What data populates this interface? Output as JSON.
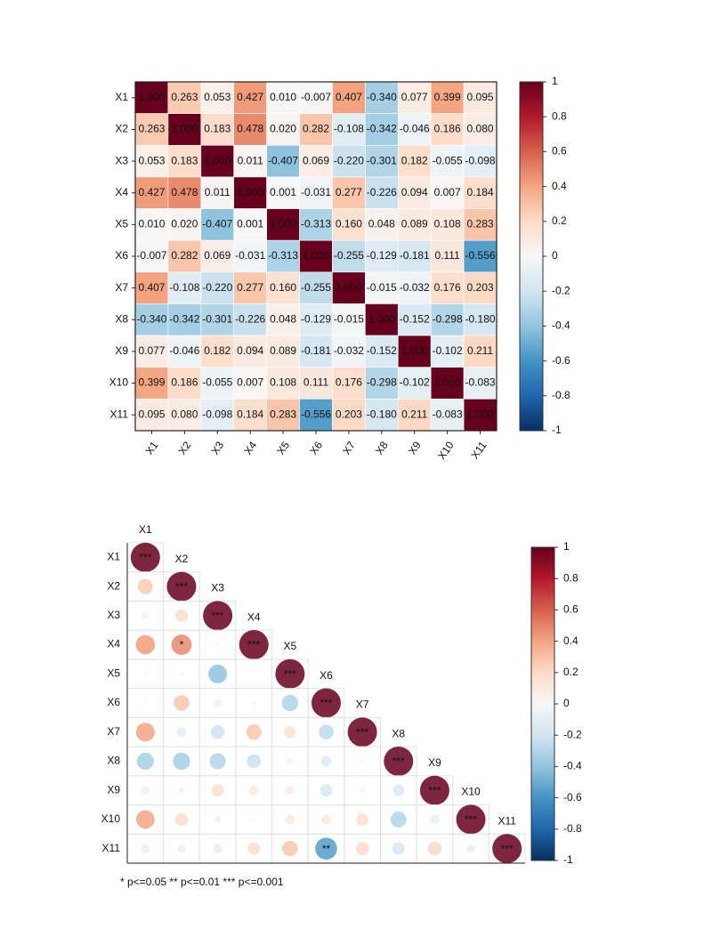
{
  "chart_data": [
    {
      "type": "heatmap",
      "categories": [
        "X1",
        "X2",
        "X3",
        "X4",
        "X5",
        "X6",
        "X7",
        "X8",
        "X9",
        "X10",
        "X11"
      ],
      "matrix": [
        [
          1.0,
          0.263,
          0.053,
          0.427,
          0.01,
          -0.007,
          0.407,
          -0.34,
          0.077,
          0.399,
          0.095
        ],
        [
          0.263,
          1.0,
          0.183,
          0.478,
          0.02,
          0.282,
          -0.108,
          -0.342,
          -0.046,
          0.186,
          0.08
        ],
        [
          0.053,
          0.183,
          1.0,
          0.011,
          -0.407,
          0.069,
          -0.22,
          -0.301,
          0.182,
          -0.055,
          -0.098
        ],
        [
          0.427,
          0.478,
          0.011,
          1.0,
          0.001,
          -0.031,
          0.277,
          -0.226,
          0.094,
          0.007,
          0.184
        ],
        [
          0.01,
          0.02,
          -0.407,
          0.001,
          1.0,
          -0.313,
          0.16,
          0.048,
          0.089,
          0.108,
          0.283
        ],
        [
          -0.007,
          0.282,
          0.069,
          -0.031,
          -0.313,
          1.0,
          -0.255,
          -0.129,
          -0.181,
          0.111,
          -0.556
        ],
        [
          0.407,
          -0.108,
          -0.22,
          0.277,
          0.16,
          -0.255,
          1.0,
          -0.015,
          -0.032,
          0.176,
          0.203
        ],
        [
          -0.34,
          -0.342,
          -0.301,
          -0.226,
          0.048,
          -0.129,
          -0.015,
          1.0,
          -0.152,
          -0.298,
          -0.18
        ],
        [
          0.077,
          -0.046,
          0.182,
          0.094,
          0.089,
          -0.181,
          -0.032,
          -0.152,
          1.0,
          -0.102,
          0.211
        ],
        [
          0.399,
          0.186,
          -0.055,
          0.007,
          0.108,
          0.111,
          0.176,
          -0.298,
          -0.102,
          1.0,
          -0.083
        ],
        [
          0.095,
          0.08,
          -0.098,
          0.184,
          0.283,
          -0.556,
          0.203,
          -0.18,
          0.211,
          -0.083,
          1.0
        ]
      ],
      "value_labels": [
        [
          "1.000",
          "0.263",
          "0.053",
          "0.427",
          "0.010",
          "-0.007",
          "0.407",
          "-0.340",
          "0.077",
          "0.399",
          "0.095"
        ],
        [
          "0.263",
          "1.000",
          "0.183",
          "0.478",
          "0.020",
          "0.282",
          "-0.108",
          "-0.342",
          "-0.046",
          "0.186",
          "0.080"
        ],
        [
          "0.053",
          "0.183",
          "1.000",
          "0.011",
          "-0.407",
          "0.069",
          "-0.220",
          "-0.301",
          "0.182",
          "-0.055",
          "-0.098"
        ],
        [
          "0.427",
          "0.478",
          "0.011",
          "1.000",
          "0.001",
          "-0.031",
          "0.277",
          "-0.226",
          "0.094",
          "0.007",
          "0.184"
        ],
        [
          "0.010",
          "0.020",
          "-0.407",
          "0.001",
          "1.000",
          "-0.313",
          "0.160",
          "0.048",
          "0.089",
          "0.108",
          "0.283"
        ],
        [
          "-0.007",
          "0.282",
          "0.069",
          "-0.031",
          "-0.313",
          "1.000",
          "-0.255",
          "-0.129",
          "-0.181",
          "0.111",
          "-0.556"
        ],
        [
          "0.407",
          "-0.108",
          "-0.220",
          "0.277",
          "0.160",
          "-0.255",
          "1.000",
          "-0.015",
          "-0.032",
          "0.176",
          "0.203"
        ],
        [
          "-0.340",
          "-0.342",
          "-0.301",
          "-0.226",
          "0.048",
          "-0.129",
          "-0.015",
          "1.000",
          "-0.152",
          "-0.298",
          "-0.180"
        ],
        [
          "0.077",
          "-0.046",
          "0.182",
          "0.094",
          "0.089",
          "-0.181",
          "-0.032",
          "-0.152",
          "1.000",
          "-0.102",
          "0.211"
        ],
        [
          "0.399",
          "0.186",
          "-0.055",
          "0.007",
          "0.108",
          "0.111",
          "0.176",
          "-0.298",
          "-0.102",
          "1.000",
          "-0.083"
        ],
        [
          "0.095",
          "0.080",
          "-0.098",
          "0.184",
          "0.283",
          "-0.556",
          "0.203",
          "-0.180",
          "0.211",
          "-0.083",
          "1.000"
        ]
      ],
      "colormap": [
        "#053061",
        "#2166ac",
        "#4393c3",
        "#92c5de",
        "#d1e5f0",
        "#f7f7f7",
        "#fddbc7",
        "#f4a582",
        "#d6604d",
        "#b2182b",
        "#67001f"
      ],
      "clim": [
        -1,
        1
      ],
      "cticks": [
        1,
        0.8,
        0.6,
        0.4,
        0.2,
        0,
        -0.2,
        -0.4,
        -0.6,
        -0.8,
        -1
      ]
    },
    {
      "type": "corrplot",
      "categories": [
        "X1",
        "X2",
        "X3",
        "X4",
        "X5",
        "X6",
        "X7",
        "X8",
        "X9",
        "X10",
        "X11"
      ],
      "matrix": [
        [
          1.0
        ],
        [
          0.263,
          1.0
        ],
        [
          0.053,
          0.183,
          1.0
        ],
        [
          0.427,
          0.478,
          0.011,
          1.0
        ],
        [
          0.01,
          0.02,
          -0.407,
          0.001,
          1.0
        ],
        [
          -0.007,
          0.282,
          0.069,
          -0.031,
          -0.313,
          1.0
        ],
        [
          0.407,
          -0.108,
          -0.22,
          0.277,
          0.16,
          -0.255,
          1.0
        ],
        [
          -0.34,
          -0.342,
          -0.301,
          -0.226,
          0.048,
          -0.129,
          -0.015,
          1.0
        ],
        [
          0.077,
          -0.046,
          0.182,
          0.094,
          0.089,
          -0.181,
          -0.032,
          -0.152,
          1.0
        ],
        [
          0.399,
          0.186,
          -0.055,
          0.007,
          0.108,
          0.111,
          0.176,
          -0.298,
          -0.102,
          1.0
        ],
        [
          0.095,
          0.08,
          -0.098,
          0.184,
          0.283,
          -0.556,
          0.203,
          -0.18,
          0.211,
          -0.083,
          1.0
        ]
      ],
      "significance": [
        [
          "***"
        ],
        [
          null,
          "***"
        ],
        [
          null,
          null,
          "***"
        ],
        [
          null,
          "*",
          null,
          "***"
        ],
        [
          null,
          null,
          null,
          null,
          "***"
        ],
        [
          null,
          null,
          null,
          null,
          null,
          "***"
        ],
        [
          null,
          null,
          null,
          null,
          null,
          null,
          "***"
        ],
        [
          null,
          null,
          null,
          null,
          null,
          null,
          null,
          "***"
        ],
        [
          null,
          null,
          null,
          null,
          null,
          null,
          null,
          null,
          "***"
        ],
        [
          null,
          null,
          null,
          null,
          null,
          null,
          null,
          null,
          null,
          "***"
        ],
        [
          null,
          null,
          null,
          null,
          null,
          "**",
          null,
          null,
          null,
          null,
          "***"
        ]
      ],
      "note": "* p<=0.05  ** p<=0.01  *** p<=0.001",
      "colormap": [
        "#053061",
        "#2166ac",
        "#4393c3",
        "#92c5de",
        "#d1e5f0",
        "#f7f7f7",
        "#fddbc7",
        "#f4a582",
        "#d6604d",
        "#b2182b",
        "#67001f"
      ],
      "clim": [
        -1,
        1
      ],
      "cticks": [
        1,
        0.8,
        0.6,
        0.4,
        0.2,
        0,
        -0.2,
        -0.4,
        -0.6,
        -0.8,
        -1
      ]
    }
  ]
}
